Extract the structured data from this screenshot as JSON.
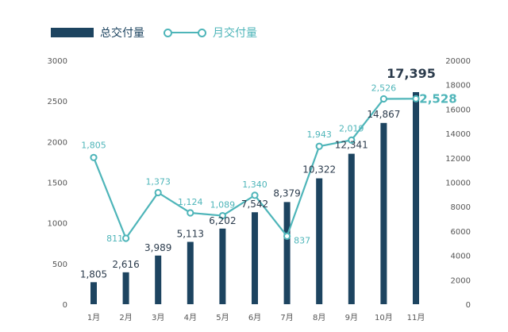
{
  "legend": {
    "bar_label": "总交付量",
    "line_label": "月交付量"
  },
  "colors": {
    "bar": "#1d4460",
    "line": "#4eb5b9",
    "axis_text": "#555555",
    "cumulative_label": "#2b3b4c"
  },
  "chart_data": {
    "type": "bar",
    "categories": [
      "1月",
      "2月",
      "3月",
      "4月",
      "5月",
      "6月",
      "7月",
      "8月",
      "9月",
      "10月",
      "11月"
    ],
    "series": [
      {
        "name": "总交付量",
        "type": "bar",
        "axis": "right",
        "values": [
          1805,
          2616,
          3989,
          5113,
          6202,
          7542,
          8379,
          10322,
          12341,
          14867,
          17395
        ],
        "labels": [
          "1,805",
          "2,616",
          "3,989",
          "5,113",
          "6,202",
          "7,542",
          "8,379",
          "10,322",
          "12,341",
          "14,867",
          "17,395"
        ]
      },
      {
        "name": "月交付量",
        "type": "line",
        "axis": "left",
        "values": [
          1805,
          811,
          1373,
          1124,
          1089,
          1340,
          837,
          1943,
          2019,
          2526,
          2528
        ],
        "labels": [
          "1,805",
          "811",
          "1,373",
          "1,124",
          "1,089",
          "1,340",
          "837",
          "1,943",
          "2,019",
          "2,526",
          "2,528"
        ]
      }
    ],
    "left_axis": {
      "ylim": [
        0,
        3000
      ],
      "ticks": [
        "0",
        "500",
        "1000",
        "1500",
        "2000",
        "2500",
        "3000"
      ]
    },
    "right_axis": {
      "ylim": [
        0,
        20000
      ],
      "ticks": [
        "0",
        "2000",
        "4000",
        "6000",
        "8000",
        "10000",
        "12000",
        "14000",
        "16000",
        "18000",
        "20000"
      ]
    },
    "grid": false,
    "legend_position": "top-left"
  }
}
